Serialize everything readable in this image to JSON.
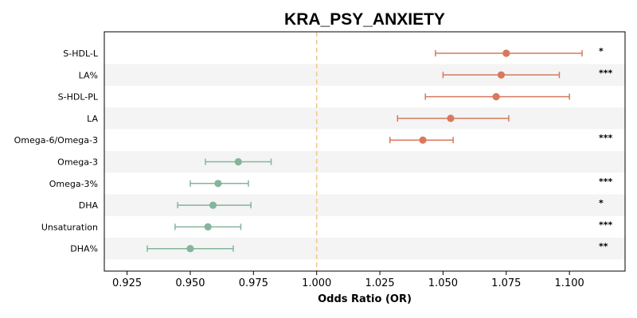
{
  "chart_data": {
    "type": "forest",
    "title": "KRA_PSY_ANXIETY",
    "xlabel": "Odds Ratio (OR)",
    "xlim": [
      0.916,
      1.122
    ],
    "xticks": [
      0.925,
      0.95,
      0.975,
      1.0,
      1.025,
      1.05,
      1.075,
      1.1
    ],
    "xtick_labels": [
      "0.925",
      "0.950",
      "0.975",
      "1.000",
      "1.025",
      "1.050",
      "1.075",
      "1.100"
    ],
    "reference_line": 1.0,
    "colors": {
      "positive": "#d9785d",
      "negative": "#84b59b",
      "reference": "#f5c98a",
      "band": "#f4f4f4"
    },
    "rows": [
      {
        "label": "S-HDL-L",
        "or": 1.075,
        "lo": 1.047,
        "hi": 1.105,
        "sig": "*"
      },
      {
        "label": "LA%",
        "or": 1.073,
        "lo": 1.05,
        "hi": 1.096,
        "sig": "***"
      },
      {
        "label": "S-HDL-PL",
        "or": 1.071,
        "lo": 1.043,
        "hi": 1.1,
        "sig": ""
      },
      {
        "label": "LA",
        "or": 1.053,
        "lo": 1.032,
        "hi": 1.076,
        "sig": ""
      },
      {
        "label": "Omega-6/Omega-3",
        "or": 1.042,
        "lo": 1.029,
        "hi": 1.054,
        "sig": "***"
      },
      {
        "label": "Omega-3",
        "or": 0.969,
        "lo": 0.956,
        "hi": 0.982,
        "sig": ""
      },
      {
        "label": "Omega-3%",
        "or": 0.961,
        "lo": 0.95,
        "hi": 0.973,
        "sig": "***"
      },
      {
        "label": "DHA",
        "or": 0.959,
        "lo": 0.945,
        "hi": 0.974,
        "sig": "*"
      },
      {
        "label": "Unsaturation",
        "or": 0.957,
        "lo": 0.944,
        "hi": 0.97,
        "sig": "***"
      },
      {
        "label": "DHA%",
        "or": 0.95,
        "lo": 0.933,
        "hi": 0.967,
        "sig": "**"
      }
    ]
  }
}
